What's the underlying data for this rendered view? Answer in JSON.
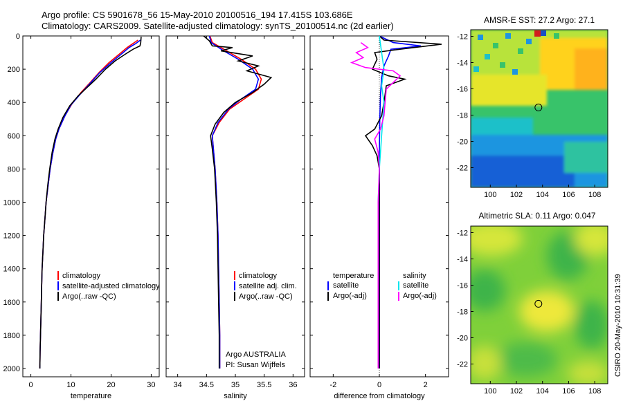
{
  "header": {
    "line1": "Argo profile: CS 5901678_56 15-May-2010 20100516_194 17.415S 103.686E",
    "line2": "Climatology: CARS2009. Satellite-adjusted climatology: synTS_20100514.nc (2d earlier)"
  },
  "colors": {
    "climatology": "#ff0000",
    "satellite": "#0000ff",
    "argo": "#000000",
    "sal_satellite": "#00e5ee",
    "sal_argo": "#ff00ff"
  },
  "chart_data": [
    {
      "type": "line",
      "name": "temperature",
      "xlabel": "temperature",
      "xlim": [
        -2,
        32
      ],
      "xticks": [
        0,
        10,
        20,
        30
      ],
      "ylim": [
        2050,
        0
      ],
      "yticks": [
        0,
        200,
        400,
        600,
        800,
        1000,
        1200,
        1400,
        1600,
        1800,
        2000
      ],
      "legend": [
        "climatology",
        "satellite-adjusted climatology",
        "Argo(..raw -QC)"
      ],
      "series": [
        {
          "name": "climatology",
          "color": "#ff0000",
          "points": [
            [
              26.7,
              25
            ],
            [
              25.5,
              45
            ],
            [
              24,
              70
            ],
            [
              22,
              110
            ],
            [
              19.5,
              160
            ],
            [
              17,
              220
            ],
            [
              14.8,
              280
            ],
            [
              12.5,
              340
            ],
            [
              10.2,
              410
            ],
            [
              8.5,
              480
            ],
            [
              7,
              560
            ],
            [
              6.2,
              620
            ],
            [
              5.5,
              700
            ],
            [
              4.8,
              800
            ],
            [
              4.3,
              900
            ],
            [
              3.8,
              1000
            ],
            [
              3.5,
              1100
            ],
            [
              3.2,
              1200
            ],
            [
              3.0,
              1300
            ],
            [
              2.8,
              1400
            ],
            [
              2.7,
              1500
            ],
            [
              2.6,
              1600
            ],
            [
              2.5,
              1700
            ],
            [
              2.4,
              1800
            ],
            [
              2.3,
              1900
            ],
            [
              2.25,
              2000
            ]
          ]
        },
        {
          "name": "satellite-adjusted climatology",
          "color": "#0000ff",
          "points": [
            [
              27.3,
              25
            ],
            [
              26.2,
              45
            ],
            [
              24.5,
              70
            ],
            [
              22.5,
              110
            ],
            [
              20,
              160
            ],
            [
              17.2,
              220
            ],
            [
              14.6,
              290
            ],
            [
              12.3,
              350
            ],
            [
              10.0,
              415
            ],
            [
              8.4,
              485
            ],
            [
              7,
              560
            ],
            [
              6.2,
              620
            ],
            [
              5.5,
              700
            ],
            [
              4.8,
              800
            ],
            [
              4.3,
              900
            ],
            [
              3.8,
              1000
            ],
            [
              3.5,
              1100
            ],
            [
              3.2,
              1200
            ],
            [
              3.0,
              1300
            ],
            [
              2.8,
              1400
            ],
            [
              2.7,
              1500
            ],
            [
              2.6,
              1600
            ],
            [
              2.5,
              1700
            ],
            [
              2.4,
              1800
            ],
            [
              2.3,
              1900
            ],
            [
              2.25,
              2000
            ]
          ]
        },
        {
          "name": "Argo(..raw -QC)",
          "color": "#000000",
          "points": [
            [
              27.5,
              5
            ],
            [
              27.4,
              40
            ],
            [
              27.2,
              60
            ],
            [
              25.5,
              80
            ],
            [
              23.5,
              110
            ],
            [
              21.0,
              150
            ],
            [
              18.6,
              200
            ],
            [
              16.2,
              260
            ],
            [
              14.0,
              310
            ],
            [
              11.8,
              360
            ],
            [
              9.7,
              420
            ],
            [
              8.0,
              490
            ],
            [
              6.8,
              560
            ],
            [
              6.0,
              620
            ],
            [
              5.3,
              700
            ],
            [
              4.7,
              800
            ],
            [
              4.2,
              900
            ],
            [
              3.8,
              1000
            ],
            [
              3.5,
              1100
            ],
            [
              3.2,
              1200
            ],
            [
              3.0,
              1300
            ],
            [
              2.8,
              1400
            ],
            [
              2.7,
              1500
            ],
            [
              2.6,
              1600
            ],
            [
              2.5,
              1700
            ],
            [
              2.4,
              1800
            ],
            [
              2.3,
              1900
            ],
            [
              2.25,
              2000
            ]
          ]
        }
      ]
    },
    {
      "type": "line",
      "name": "salinity",
      "xlabel": "salinity",
      "xlim": [
        33.8,
        36.2
      ],
      "xticks": [
        34,
        34.5,
        35,
        35.5,
        36
      ],
      "ylim": [
        2050,
        0
      ],
      "yticks": [
        0,
        200,
        400,
        600,
        800,
        1000,
        1200,
        1400,
        1600,
        1800,
        2000
      ],
      "legend": [
        "climatology",
        "satellite adj. clim.",
        "Argo(..raw -QC)"
      ],
      "annotation": [
        "Argo AUSTRALIA",
        "PI: Susan Wijffels"
      ],
      "series": [
        {
          "name": "climatology",
          "color": "#ff0000",
          "points": [
            [
              34.56,
              0
            ],
            [
              34.6,
              40
            ],
            [
              34.85,
              90
            ],
            [
              35.1,
              140
            ],
            [
              35.35,
              200
            ],
            [
              35.45,
              260
            ],
            [
              35.4,
              320
            ],
            [
              35.15,
              380
            ],
            [
              34.9,
              440
            ],
            [
              34.72,
              520
            ],
            [
              34.6,
              600
            ],
            [
              34.62,
              680
            ],
            [
              34.65,
              800
            ],
            [
              34.68,
              1000
            ],
            [
              34.7,
              1200
            ],
            [
              34.71,
              1400
            ],
            [
              34.72,
              1600
            ],
            [
              34.73,
              1800
            ],
            [
              34.73,
              2000
            ]
          ]
        },
        {
          "name": "satellite adj. clim.",
          "color": "#0000ff",
          "points": [
            [
              34.55,
              0
            ],
            [
              34.58,
              40
            ],
            [
              34.8,
              90
            ],
            [
              35.05,
              140
            ],
            [
              35.3,
              200
            ],
            [
              35.4,
              260
            ],
            [
              35.35,
              320
            ],
            [
              35.1,
              380
            ],
            [
              34.88,
              440
            ],
            [
              34.7,
              520
            ],
            [
              34.6,
              600
            ],
            [
              34.62,
              680
            ],
            [
              34.65,
              800
            ],
            [
              34.68,
              1000
            ],
            [
              34.7,
              1200
            ],
            [
              34.71,
              1400
            ],
            [
              34.72,
              1600
            ],
            [
              34.73,
              1800
            ],
            [
              34.73,
              2000
            ]
          ]
        },
        {
          "name": "Argo(..raw -QC)",
          "color": "#000000",
          "points": [
            [
              34.45,
              0
            ],
            [
              34.55,
              30
            ],
            [
              34.6,
              60
            ],
            [
              34.95,
              70
            ],
            [
              34.75,
              90
            ],
            [
              35.3,
              120
            ],
            [
              35.05,
              150
            ],
            [
              35.4,
              180
            ],
            [
              35.2,
              210
            ],
            [
              35.62,
              250
            ],
            [
              35.5,
              290
            ],
            [
              35.3,
              340
            ],
            [
              35.0,
              400
            ],
            [
              34.8,
              460
            ],
            [
              34.65,
              530
            ],
            [
              34.57,
              600
            ],
            [
              34.6,
              680
            ],
            [
              34.64,
              800
            ],
            [
              34.67,
              1000
            ],
            [
              34.69,
              1200
            ],
            [
              34.7,
              1400
            ],
            [
              34.71,
              1600
            ],
            [
              34.72,
              1800
            ],
            [
              34.72,
              2000
            ]
          ]
        }
      ]
    },
    {
      "type": "line",
      "name": "difference",
      "xlabel": "difference from climatology",
      "xlim": [
        -3,
        3
      ],
      "xticks": [
        -2,
        0,
        2
      ],
      "ylim": [
        2050,
        0
      ],
      "yticks": [
        0,
        200,
        400,
        600,
        800,
        1000,
        1200,
        1400,
        1600,
        1800,
        2000
      ],
      "legend_temperature": {
        "title": "temperature",
        "items": [
          "satellite",
          "Argo(-adj)"
        ]
      },
      "legend_salinity": {
        "title": "salinity",
        "items": [
          "satellite",
          "Argo(-adj)"
        ]
      },
      "series": [
        {
          "name": "temperature satellite",
          "color": "#0000ff",
          "points": [
            [
              0,
              0
            ],
            [
              0.6,
              40
            ],
            [
              1.8,
              60
            ],
            [
              0.5,
              80
            ],
            [
              0.4,
              120
            ],
            [
              0.2,
              180
            ],
            [
              0.1,
              250
            ],
            [
              0.05,
              350
            ],
            [
              0.02,
              500
            ],
            [
              0,
              700
            ],
            [
              0,
              1000
            ],
            [
              0,
              1500
            ],
            [
              0,
              2000
            ]
          ]
        },
        {
          "name": "temperature Argo(-adj)",
          "color": "#000000",
          "points": [
            [
              0,
              0
            ],
            [
              0.2,
              25
            ],
            [
              2.7,
              50
            ],
            [
              0.9,
              80
            ],
            [
              -0.2,
              100
            ],
            [
              -0.1,
              140
            ],
            [
              -0.3,
              200
            ],
            [
              0.4,
              240
            ],
            [
              1.1,
              260
            ],
            [
              0.3,
              300
            ],
            [
              0.2,
              400
            ],
            [
              0.1,
              480
            ],
            [
              -0.2,
              560
            ],
            [
              -0.6,
              600
            ],
            [
              -0.3,
              660
            ],
            [
              -0.1,
              720
            ],
            [
              0,
              800
            ],
            [
              0,
              1000
            ],
            [
              0,
              1500
            ],
            [
              0,
              2000
            ]
          ]
        },
        {
          "name": "salinity satellite",
          "color": "#00e5ee",
          "points": [
            [
              0,
              0
            ],
            [
              0.1,
              100
            ],
            [
              0.2,
              200
            ],
            [
              0.1,
              300
            ],
            [
              0.2,
              400
            ],
            [
              0.15,
              500
            ],
            [
              0.1,
              600
            ],
            [
              0,
              800
            ],
            [
              -0.05,
              1000
            ],
            [
              -0.05,
              1500
            ],
            [
              -0.05,
              2000
            ]
          ]
        },
        {
          "name": "salinity Argo(-adj)",
          "color": "#ff00ff",
          "points": [
            [
              -0.8,
              40
            ],
            [
              -0.5,
              70
            ],
            [
              -1.0,
              100
            ],
            [
              -0.7,
              130
            ],
            [
              -1.2,
              160
            ],
            [
              -0.6,
              190
            ],
            [
              0.6,
              210
            ],
            [
              0.9,
              240
            ],
            [
              0.6,
              280
            ],
            [
              0.3,
              320
            ],
            [
              0.25,
              400
            ],
            [
              0.2,
              480
            ],
            [
              0.05,
              560
            ],
            [
              -0.2,
              620
            ],
            [
              -0.05,
              700
            ],
            [
              0,
              800
            ],
            [
              -0.05,
              1000
            ],
            [
              -0.05,
              1500
            ],
            [
              -0.05,
              2000
            ]
          ]
        }
      ]
    },
    {
      "type": "heatmap",
      "name": "sst-map",
      "title": "AMSR-E SST: 27.2 Argo: 27.1",
      "xlim": [
        98.5,
        109
      ],
      "ylim": [
        -23.5,
        -11.5
      ],
      "xticks": [
        100,
        102,
        104,
        106,
        108
      ],
      "yticks": [
        -12,
        -14,
        -16,
        -18,
        -20,
        -22
      ],
      "marker": {
        "lon": 103.686,
        "lat": -17.415
      }
    },
    {
      "type": "heatmap",
      "name": "sla-map",
      "title": "Altimetric SLA: 0.11 Argo: 0.047",
      "xlim": [
        98.5,
        109
      ],
      "ylim": [
        -23.5,
        -11.5
      ],
      "xticks": [
        100,
        102,
        104,
        106,
        108
      ],
      "yticks": [
        -12,
        -14,
        -16,
        -18,
        -20,
        -22
      ],
      "marker": {
        "lon": 103.686,
        "lat": -17.415
      }
    }
  ],
  "footer": {
    "credit": "CSIRO 20-May-2010 10:31:39"
  }
}
